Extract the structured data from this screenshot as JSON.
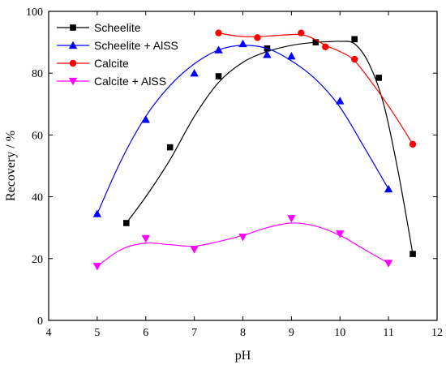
{
  "chart_data": {
    "type": "scatter",
    "xlabel": "pH",
    "ylabel": "Recovery / %",
    "xlim": [
      4,
      12
    ],
    "ylim": [
      0,
      100
    ],
    "xticks": [
      4,
      5,
      6,
      7,
      8,
      9,
      10,
      11,
      12
    ],
    "yticks": [
      0,
      20,
      40,
      60,
      80,
      100
    ],
    "grid": false,
    "legend_position": "top-left",
    "series": [
      {
        "name": "Scheelite",
        "marker": "square",
        "color": "#000000",
        "x": [
          5.6,
          6.5,
          7.5,
          8.5,
          9.5,
          10.3,
          10.8,
          11.5
        ],
        "y": [
          31.5,
          56,
          79,
          88,
          90,
          91,
          78.5,
          21.5
        ],
        "curve_x": [
          5.6,
          6.0,
          6.5,
          7.0,
          7.5,
          8.0,
          8.5,
          9.0,
          9.5,
          9.8,
          10.0,
          10.3,
          10.6,
          10.9,
          11.2,
          11.5
        ],
        "curve_y": [
          31.5,
          40,
          52,
          66,
          77,
          83.5,
          87,
          89,
          90,
          90.2,
          90.3,
          89.5,
          83,
          70,
          48,
          21.5
        ]
      },
      {
        "name": "Scheelite + AlSS",
        "marker": "triangle-up",
        "color": "#0000ff",
        "x": [
          5,
          6,
          7,
          7.5,
          8,
          8.5,
          9,
          10,
          11
        ],
        "y": [
          34.5,
          65,
          80,
          87.5,
          89.5,
          86,
          85.5,
          71,
          42.5
        ],
        "curve_x": [
          5,
          5.5,
          6,
          6.5,
          7,
          7.5,
          8,
          8.5,
          9,
          9.5,
          10,
          10.5,
          11
        ],
        "curve_y": [
          34.5,
          52,
          66,
          76,
          83,
          87.5,
          89,
          88,
          84,
          78,
          69,
          56,
          42.5
        ]
      },
      {
        "name": "Calcite",
        "marker": "circle",
        "color": "#ff0000",
        "x": [
          7.5,
          8.3,
          9.2,
          9.7,
          10.3,
          11.5
        ],
        "y": [
          93,
          91.5,
          93,
          88.5,
          84.5,
          57
        ],
        "curve_x": [
          7.5,
          7.9,
          8.3,
          8.7,
          9.2,
          9.5,
          9.7,
          10.0,
          10.3,
          10.7,
          11.1,
          11.5
        ],
        "curve_y": [
          93,
          92,
          91.8,
          92.2,
          92.5,
          90.8,
          89,
          87,
          84,
          76,
          67,
          57
        ]
      },
      {
        "name": "Calcite + AlSS",
        "marker": "triangle-down",
        "color": "#ff00ff",
        "x": [
          5,
          6,
          7,
          8,
          9,
          10,
          11
        ],
        "y": [
          17.5,
          26.5,
          23,
          27,
          33,
          28,
          18.5
        ],
        "curve_x": [
          5,
          5.5,
          6,
          6.5,
          7,
          7.5,
          8,
          8.5,
          9,
          9.5,
          10,
          10.5,
          11
        ],
        "curve_y": [
          17.5,
          23,
          25,
          24.5,
          24,
          25.5,
          27.5,
          30,
          31.5,
          30.5,
          27.5,
          23,
          18.5
        ]
      }
    ]
  }
}
